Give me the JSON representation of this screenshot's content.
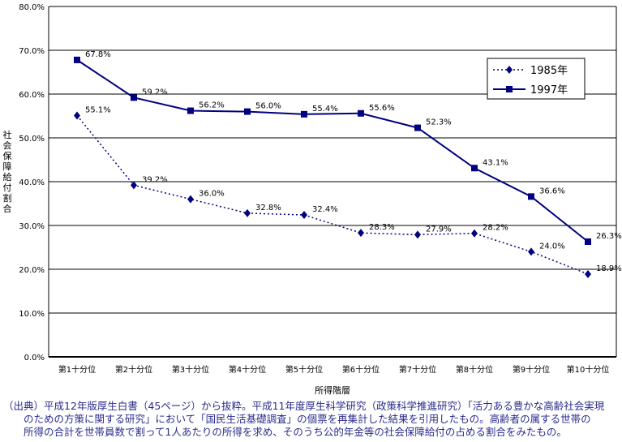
{
  "chart_data": {
    "type": "line",
    "xlabel": "所得階層",
    "ylabel": "社会保障給付割合",
    "categories": [
      "第1十分位",
      "第2十分位",
      "第3十分位",
      "第4十分位",
      "第5十分位",
      "第6十分位",
      "第7十分位",
      "第8十分位",
      "第9十分位",
      "第10十分位"
    ],
    "ylim": [
      0,
      80
    ],
    "yticks": [
      "0.0%",
      "10.0%",
      "20.0%",
      "30.0%",
      "40.0%",
      "50.0%",
      "60.0%",
      "70.0%",
      "80.0%"
    ],
    "grid": true,
    "legend": "top-right",
    "series": [
      {
        "name": "1985年",
        "style": "dotted",
        "marker": "diamond",
        "color": "#000080",
        "values": [
          55.1,
          39.2,
          36.0,
          32.8,
          32.4,
          28.3,
          27.9,
          28.2,
          24.0,
          18.9
        ],
        "labels": [
          "55.1%",
          "39.2%",
          "36.0%",
          "32.8%",
          "32.4%",
          "28.3%",
          "27.9%",
          "28.2%",
          "24.0%",
          "18.9%"
        ]
      },
      {
        "name": "1997年",
        "style": "solid",
        "marker": "square",
        "color": "#000080",
        "values": [
          67.8,
          59.2,
          56.2,
          56.0,
          55.4,
          55.6,
          52.3,
          43.1,
          36.6,
          26.3
        ],
        "labels": [
          "67.8%",
          "59.2%",
          "56.2%",
          "56.0%",
          "55.4%",
          "55.6%",
          "52.3%",
          "43.1%",
          "36.6%",
          "26.3%"
        ]
      }
    ]
  },
  "note": [
    "（出典）平成12年版厚生白書（45ページ）から抜粋。平成11年度厚生科学研究（政策科学推進研究）「活力ある豊かな高齢社会実現",
    "　　のための方策に関する研究」において「国民生活基礎調査」の個票を再集計した結果を引用したもの。高齢者の属する世帯の",
    "　　所得の合計を世帯員数で割って1人あたりの所得を求め、そのうち公的年金等の社会保障給付の占める割合をみたもの。"
  ]
}
